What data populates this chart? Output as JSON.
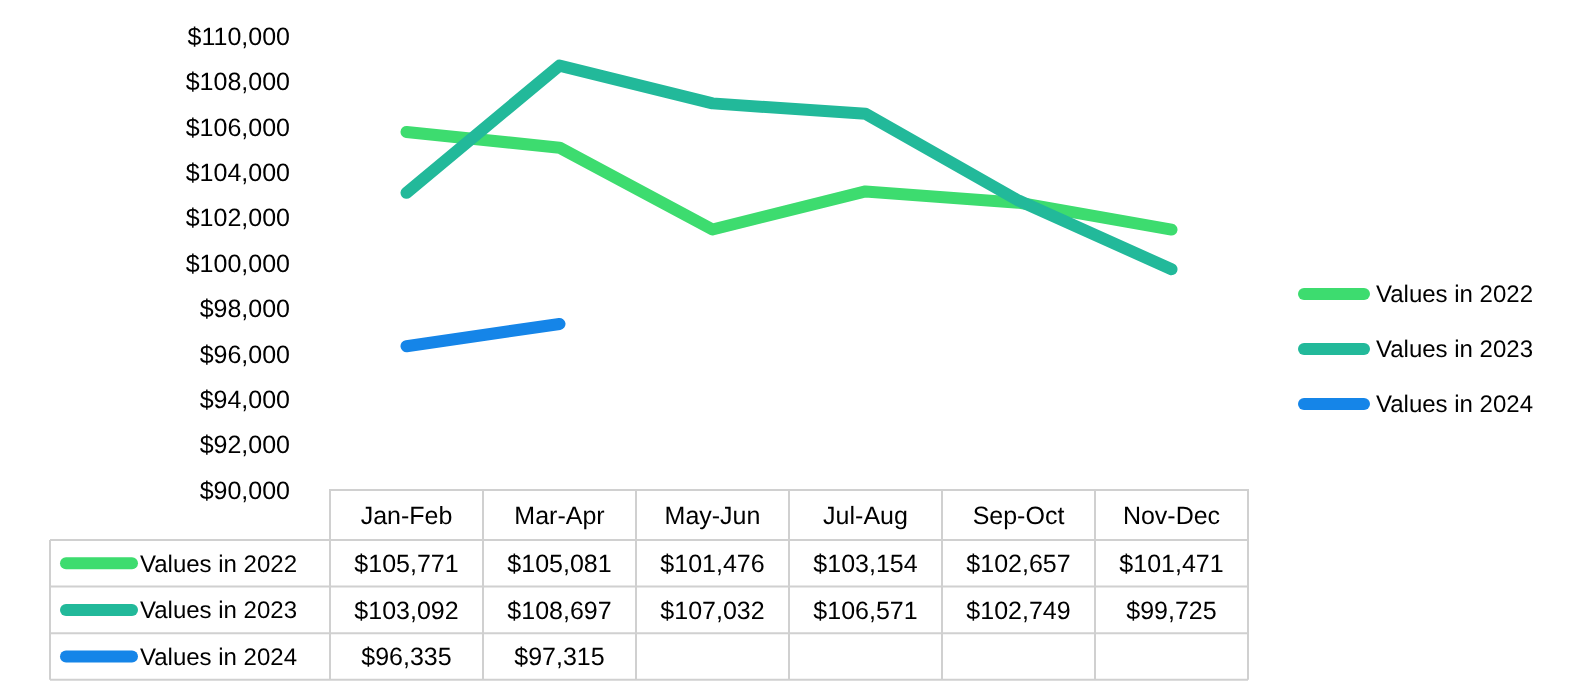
{
  "chart_data": {
    "type": "line",
    "categories": [
      "Jan-Feb",
      "Mar-Apr",
      "May-Jun",
      "Jul-Aug",
      "Sep-Oct",
      "Nov-Dec"
    ],
    "series": [
      {
        "name": "Values in 2022",
        "color": "#3ddc6f",
        "values": [
          105771,
          105081,
          101476,
          103154,
          102657,
          101471
        ],
        "value_labels": [
          "$105,771",
          "$105,081",
          "$101,476",
          "$103,154",
          "$102,657",
          "$101,471"
        ]
      },
      {
        "name": "Values in 2023",
        "color": "#22b99a",
        "values": [
          103092,
          108697,
          107032,
          106571,
          102749,
          99725
        ],
        "value_labels": [
          "$103,092",
          "$108,697",
          "$107,032",
          "$106,571",
          "$102,749",
          "$99,725"
        ]
      },
      {
        "name": "Values in 2024",
        "color": "#1585e8",
        "values": [
          96335,
          97315,
          null,
          null,
          null,
          null
        ],
        "value_labels": [
          "$96,335",
          "$97,315",
          null,
          null,
          null,
          null
        ]
      }
    ],
    "ylim": [
      90000,
      110000
    ],
    "yticks": [
      {
        "value": 90000,
        "label": "$90,000"
      },
      {
        "value": 92000,
        "label": "$92,000"
      },
      {
        "value": 94000,
        "label": "$94,000"
      },
      {
        "value": 96000,
        "label": "$96,000"
      },
      {
        "value": 98000,
        "label": "$98,000"
      },
      {
        "value": 100000,
        "label": "$100,000"
      },
      {
        "value": 102000,
        "label": "$102,000"
      },
      {
        "value": 104000,
        "label": "$104,000"
      },
      {
        "value": 106000,
        "label": "$106,000"
      },
      {
        "value": 108000,
        "label": "$108,000"
      },
      {
        "value": 110000,
        "label": "$110,000"
      }
    ],
    "legend": "right",
    "grid": false,
    "line_style": "solid"
  }
}
